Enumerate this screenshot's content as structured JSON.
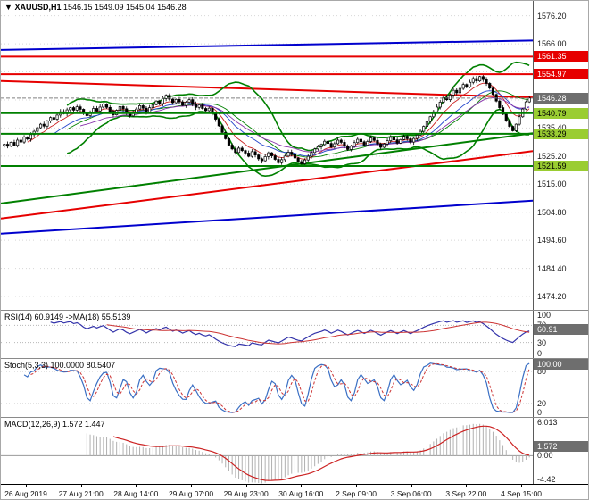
{
  "header": {
    "dropdown_icon": "▼",
    "symbol": "XAUUSD,H1",
    "ohlc": "1546.15 1549.09 1545.04 1546.28"
  },
  "chart_data": {
    "type": "candlestick",
    "symbol": "XAUUSD",
    "timeframe": "H1",
    "price_axis": {
      "range": [
        1470,
        1579
      ],
      "ticks": [
        "1576.20",
        "1566.00",
        "1555.80",
        "1545.60",
        "1535.40",
        "1525.20",
        "1515.00",
        "1504.80",
        "1494.60",
        "1484.40",
        "1474.20"
      ]
    },
    "candles": {
      "count": 160,
      "closes": [
        1529.5,
        1528.8,
        1530.2,
        1529.1,
        1531.0,
        1530.3,
        1532.1,
        1531.4,
        1533.0,
        1534.2,
        1535.5,
        1536.8,
        1536.1,
        1538.0,
        1539.2,
        1538.6,
        1540.1,
        1541.3,
        1540.6,
        1542.0,
        1542.8,
        1541.9,
        1543.1,
        1542.2,
        1540.8,
        1539.9,
        1541.2,
        1542.5,
        1541.6,
        1543.0,
        1544.1,
        1542.9,
        1541.5,
        1540.2,
        1541.8,
        1543.2,
        1542.4,
        1540.9,
        1539.8,
        1541.0,
        1542.3,
        1543.5,
        1542.6,
        1541.2,
        1542.8,
        1543.9,
        1545.2,
        1544.3,
        1546.1,
        1547.3,
        1545.9,
        1544.6,
        1545.8,
        1544.9,
        1543.6,
        1544.8,
        1545.7,
        1544.2,
        1542.9,
        1543.8,
        1542.5,
        1541.7,
        1542.6,
        1540.9,
        1538.6,
        1536.2,
        1533.8,
        1531.5,
        1529.2,
        1527.8,
        1526.5,
        1528.1,
        1527.2,
        1526.3,
        1525.1,
        1526.8,
        1525.6,
        1524.2,
        1523.5,
        1525.0,
        1526.4,
        1525.3,
        1524.0,
        1522.8,
        1523.9,
        1525.2,
        1526.6,
        1525.7,
        1524.5,
        1523.2,
        1522.4,
        1523.8,
        1525.1,
        1526.5,
        1527.8,
        1528.6,
        1529.4,
        1530.6,
        1529.8,
        1528.5,
        1529.7,
        1531.0,
        1530.2,
        1528.9,
        1527.6,
        1528.8,
        1530.1,
        1531.3,
        1530.4,
        1529.2,
        1530.5,
        1531.8,
        1530.9,
        1529.6,
        1528.4,
        1529.6,
        1530.8,
        1532.0,
        1531.1,
        1529.9,
        1531.2,
        1532.4,
        1531.5,
        1530.3,
        1531.6,
        1532.8,
        1534.2,
        1536.0,
        1537.8,
        1539.5,
        1541.3,
        1543.0,
        1544.8,
        1546.5,
        1545.7,
        1547.4,
        1549.1,
        1548.2,
        1549.8,
        1551.2,
        1550.3,
        1552.0,
        1553.4,
        1552.5,
        1554.1,
        1553.0,
        1551.6,
        1549.9,
        1547.6,
        1545.2,
        1542.8,
        1540.4,
        1538.1,
        1536.0,
        1534.4,
        1536.8,
        1539.5,
        1542.3,
        1544.9,
        1546.3
      ]
    },
    "current_price": {
      "price": 1546.28,
      "label": "1546.28",
      "line_color": "#808080",
      "label_bg": "#6e6e6e",
      "label_fg": "#ffffff"
    },
    "levels": [
      {
        "price": 1561.35,
        "label": "1561.35",
        "line_color": "#e60000",
        "label_bg": "#e60000",
        "label_fg": "#ffffff",
        "width": 2
      },
      {
        "price": 1554.97,
        "label": "1554.97",
        "line_color": "#e60000",
        "label_bg": "#e60000",
        "label_fg": "#ffffff",
        "width": 2
      },
      {
        "price": 1540.79,
        "label": "1540.79",
        "line_color": "#008000",
        "label_bg": "#9acd32",
        "label_fg": "#000000",
        "width": 2
      },
      {
        "price": 1533.29,
        "label": "1533.29",
        "line_color": "#008000",
        "label_bg": "#9acd32",
        "label_fg": "#000000",
        "width": 2
      },
      {
        "price": 1521.59,
        "label": "1521.59",
        "line_color": "#008000",
        "label_bg": "#9acd32",
        "label_fg": "#000000",
        "width": 2
      }
    ],
    "trendlines": [
      {
        "name": "blue-upper-channel",
        "p1": 1563.8,
        "p2": 1567.2,
        "color": "#0000cd",
        "width": 2
      },
      {
        "name": "red-descending",
        "p1": 1552.5,
        "p2": 1546.5,
        "color": "#e60000",
        "width": 2
      },
      {
        "name": "green-ascending",
        "p1": 1508.0,
        "p2": 1533.5,
        "color": "#008000",
        "width": 2
      },
      {
        "name": "red-ascending",
        "p1": 1502.5,
        "p2": 1527.0,
        "color": "#e60000",
        "width": 2
      },
      {
        "name": "blue-lower-channel",
        "p1": 1497.0,
        "p2": 1509.0,
        "color": "#0000cd",
        "width": 2
      }
    ],
    "overlays": {
      "bollinger": {
        "period": 20,
        "deviation": 2,
        "color": "#008000"
      },
      "moving_averages": [
        {
          "period": 8,
          "color": "#cc2222"
        },
        {
          "period": 16,
          "color": "#2244cc"
        },
        {
          "period": 24,
          "color": "#8833aa"
        }
      ],
      "bull_color": "#ffffff",
      "bear_color": "#000000",
      "outline_color": "#000000"
    },
    "subcharts": [
      {
        "id": "rsi",
        "label": "RSI(14) 60.9149  ->MA(18) 55.5139",
        "params": {
          "period": 14,
          "ma_period": 18
        },
        "range": [
          0,
          100
        ],
        "levels": [
          70,
          30
        ],
        "ticks": [
          {
            "label": "100",
            "value": 100
          },
          {
            "label": "70",
            "value": 70
          },
          {
            "label": "30",
            "value": 30
          },
          {
            "label": "0",
            "value": 0
          }
        ],
        "current": {
          "label": "60.91",
          "value": 60.9149
        },
        "line_color": "#3333aa",
        "ma_color": "#cc3333"
      },
      {
        "id": "stoch",
        "label": "Stoch(5,3,3) 100.0000 80.5407",
        "params": {
          "k": 5,
          "d": 3,
          "slowing": 3
        },
        "range": [
          0,
          100
        ],
        "levels": [
          80,
          20
        ],
        "ticks": [
          {
            "label": "100",
            "value": 100
          },
          {
            "label": "80",
            "value": 80
          },
          {
            "label": "20",
            "value": 20
          },
          {
            "label": "0",
            "value": 0
          }
        ],
        "current": {
          "label": "100.00",
          "value": 100.0
        },
        "line_color": "#3a6fc4",
        "signal_color": "#cc3333"
      },
      {
        "id": "macd",
        "label": "MACD(12,26,9) 1.572 1.447",
        "params": {
          "fast": 12,
          "slow": 26,
          "signal": 9
        },
        "range": [
          -4.42,
          6.013
        ],
        "ticks": [
          {
            "label": "6.013",
            "value": 6.013
          },
          {
            "label": "0.00",
            "value": 0
          },
          {
            "label": "-4.42",
            "value": -4.42
          }
        ],
        "current": {
          "label": "1.572",
          "value": 1.572
        },
        "hist_color": "#b0b0b0",
        "signal_color": "#cc2222"
      }
    ],
    "time_axis": {
      "labels": [
        "26 Aug 2019",
        "27 Aug 21:00",
        "28 Aug 14:00",
        "29 Aug 07:00",
        "29 Aug 23:00",
        "30 Aug 16:00",
        "2 Sep 09:00",
        "3 Sep 06:00",
        "3 Sep 22:00",
        "4 Sep 15:00"
      ]
    }
  }
}
